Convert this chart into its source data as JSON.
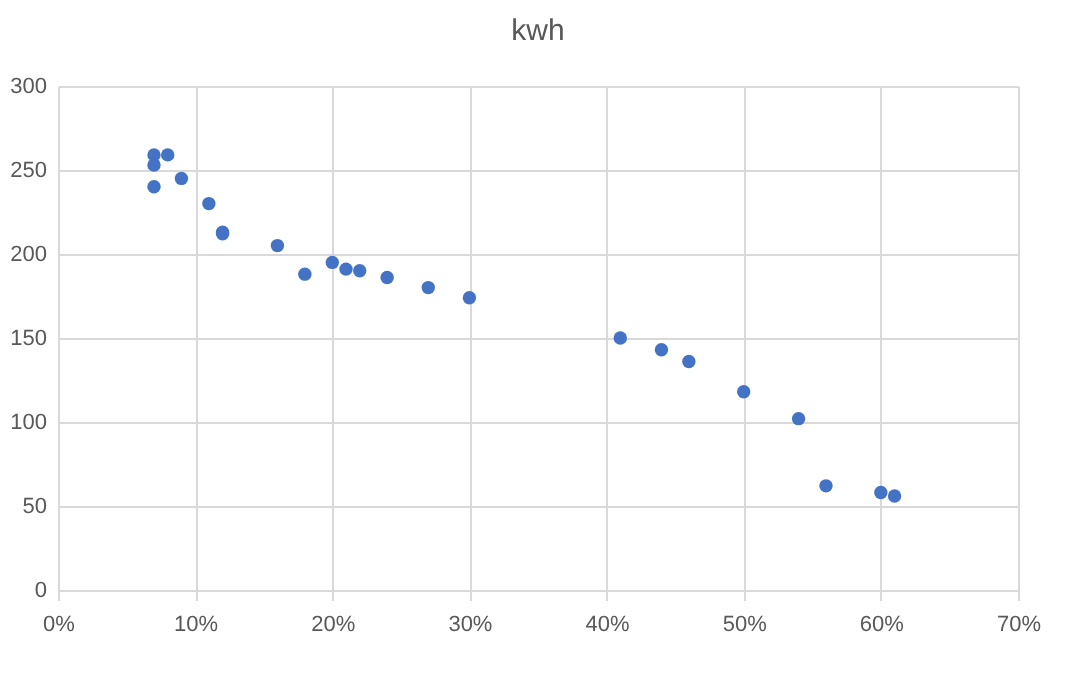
{
  "chart_data": {
    "type": "scatter",
    "title": "kwh",
    "x": [
      7,
      7,
      8,
      7,
      9,
      11,
      12,
      12,
      16,
      18,
      20,
      21,
      22,
      24,
      27,
      30,
      41,
      44,
      46,
      50,
      54,
      56,
      60,
      61
    ],
    "series": [
      {
        "color": "#4472c4",
        "values": [
          259,
          253,
          259,
          240,
          245,
          230,
          213,
          212,
          205,
          188,
          195,
          191,
          190,
          186,
          180,
          174,
          150,
          143,
          136,
          118,
          102,
          62,
          58,
          56
        ]
      }
    ],
    "xlim": [
      0,
      70
    ],
    "xticks": [
      {
        "value": 0,
        "label": "0%"
      },
      {
        "value": 10,
        "label": "10%"
      },
      {
        "value": 20,
        "label": "20%"
      },
      {
        "value": 30,
        "label": "30%"
      },
      {
        "value": 40,
        "label": "40%"
      },
      {
        "value": 50,
        "label": "50%"
      },
      {
        "value": 60,
        "label": "60%"
      },
      {
        "value": 70,
        "label": "70%"
      }
    ],
    "ylim": [
      0,
      300
    ],
    "yticks": [
      0,
      50,
      100,
      150,
      200,
      250,
      300
    ],
    "grid": true,
    "marker": "circle"
  }
}
